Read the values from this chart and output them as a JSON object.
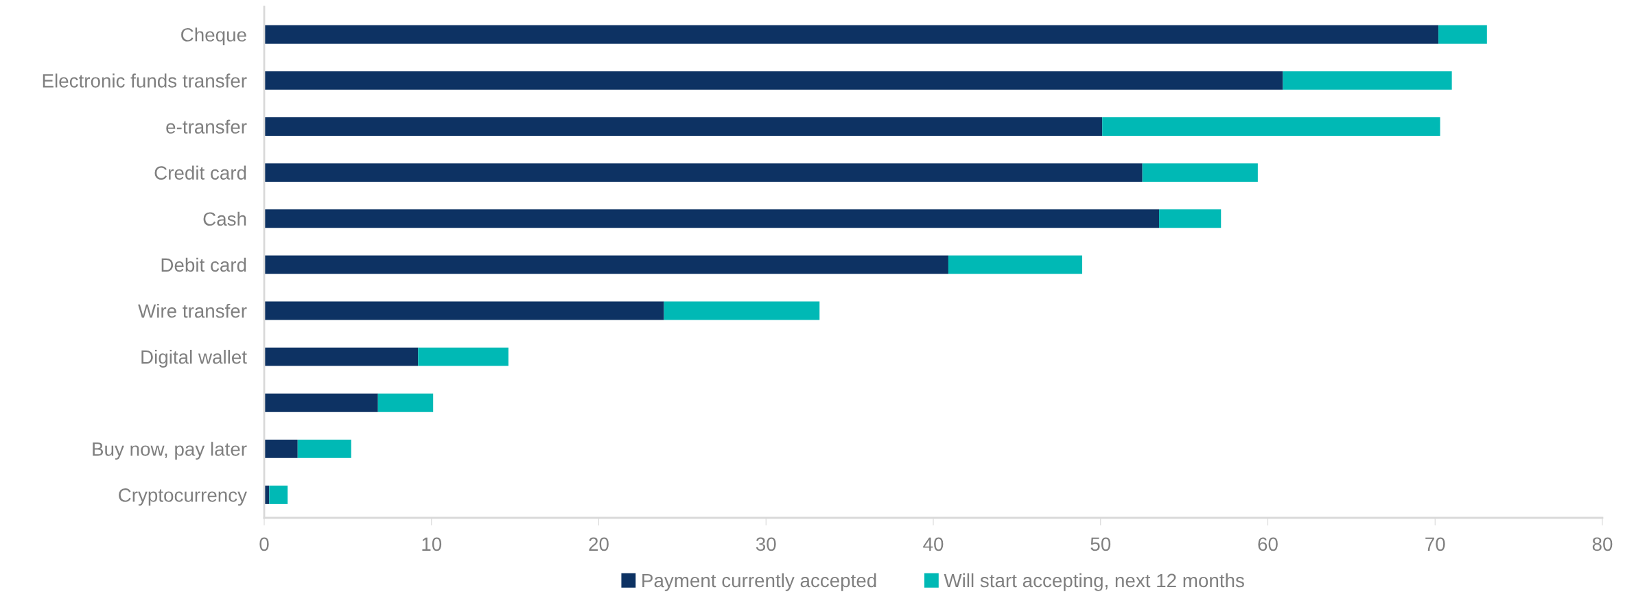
{
  "chart_data": {
    "type": "bar",
    "orientation": "horizontal",
    "stacked": true,
    "categories": [
      "Cheque",
      "Electronic funds transfer",
      "e-transfer",
      "Credit card",
      "Cash",
      "Debit card",
      "Wire transfer",
      "Digital wallet",
      null,
      "Buy now, pay later",
      "Cryptocurrency"
    ],
    "series": [
      {
        "name": "Payment currently accepted",
        "color": "#0d3263",
        "values": [
          70.2,
          60.9,
          50.1,
          52.5,
          53.5,
          40.9,
          23.9,
          9.2,
          6.8,
          2.0,
          0.3
        ]
      },
      {
        "name": "Will start accepting, next 12 months",
        "color": "#00b9b5",
        "values": [
          2.9,
          10.1,
          20.2,
          6.9,
          3.7,
          8.0,
          9.3,
          5.4,
          3.3,
          3.2,
          1.1
        ]
      }
    ],
    "xlim": [
      0,
      80
    ],
    "xticks": [
      0,
      10,
      20,
      30,
      40,
      50,
      60,
      70,
      80
    ],
    "grid": false,
    "legend": "bottom"
  }
}
